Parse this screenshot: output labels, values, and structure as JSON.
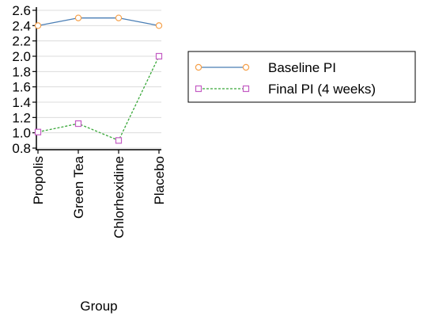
{
  "chart_data": {
    "type": "line",
    "categories": [
      "Propolis",
      "Green Tea",
      "Chlorhexidine",
      "Placebo"
    ],
    "series": [
      {
        "name": "Baseline PI",
        "values": [
          2.4,
          2.5,
          2.5,
          2.4
        ],
        "color": "#4a7eb5",
        "marker": "circle",
        "marker_color": "#f5a04a",
        "line_style": "solid"
      },
      {
        "name": "Final PI (4 weeks)",
        "values": [
          1.01,
          1.12,
          0.9,
          2.0
        ],
        "color": "#3aa83a",
        "marker": "square",
        "marker_color": "#c45cc4",
        "line_style": "dashed"
      }
    ],
    "xlabel": "Group",
    "ylabel": "",
    "ylim": [
      0.8,
      2.6
    ],
    "yticks": [
      "0.8",
      "1.0",
      "1.2",
      "1.4",
      "1.6",
      "1.8",
      "2.0",
      "2.2",
      "2.4",
      "2.6"
    ],
    "grid": true,
    "legend_position": "right"
  }
}
